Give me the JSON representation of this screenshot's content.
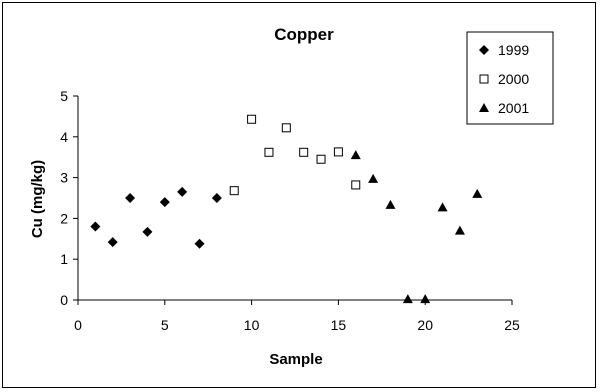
{
  "chart_data": {
    "type": "scatter",
    "title": "Copper",
    "xlabel": "Sample",
    "ylabel": "Cu (mg/kg)",
    "xlim": [
      0,
      25
    ],
    "ylim": [
      0,
      5
    ],
    "x_ticks": [
      "0",
      "5",
      "10",
      "15",
      "20",
      "25"
    ],
    "y_ticks": [
      "0",
      "1",
      "2",
      "3",
      "4",
      "5"
    ],
    "grid": false,
    "legend_position": "top-right",
    "series": [
      {
        "name": "1999",
        "marker": "diamond",
        "color": "#000000",
        "points": [
          {
            "x": 1,
            "y": 1.8
          },
          {
            "x": 2,
            "y": 1.42
          },
          {
            "x": 3,
            "y": 2.5
          },
          {
            "x": 4,
            "y": 1.67
          },
          {
            "x": 5,
            "y": 2.4
          },
          {
            "x": 6,
            "y": 2.65
          },
          {
            "x": 7,
            "y": 1.38
          },
          {
            "x": 8,
            "y": 2.5
          }
        ]
      },
      {
        "name": "2000",
        "marker": "square-open",
        "color": "#000000",
        "points": [
          {
            "x": 9,
            "y": 2.68
          },
          {
            "x": 10,
            "y": 4.43
          },
          {
            "x": 11,
            "y": 3.62
          },
          {
            "x": 12,
            "y": 4.22
          },
          {
            "x": 13,
            "y": 3.62
          },
          {
            "x": 14,
            "y": 3.45
          },
          {
            "x": 15,
            "y": 3.63
          },
          {
            "x": 16,
            "y": 2.82
          }
        ]
      },
      {
        "name": "2001",
        "marker": "triangle",
        "color": "#000000",
        "points": [
          {
            "x": 16,
            "y": 3.55
          },
          {
            "x": 17,
            "y": 2.97
          },
          {
            "x": 18,
            "y": 2.33
          },
          {
            "x": 19,
            "y": 0.02
          },
          {
            "x": 20,
            "y": 0.02
          },
          {
            "x": 21,
            "y": 2.27
          },
          {
            "x": 22,
            "y": 1.7
          },
          {
            "x": 23,
            "y": 2.6
          }
        ]
      }
    ]
  }
}
